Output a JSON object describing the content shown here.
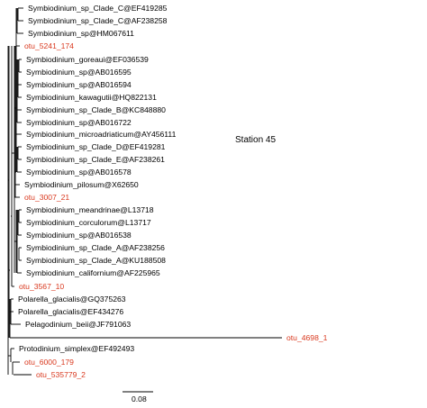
{
  "figure": {
    "annotation": "Station 45",
    "scale_bar_label": "0.08"
  },
  "colors": {
    "reference": "#000000",
    "otu": "#d9381e",
    "branch": "#000000"
  },
  "leaves": [
    {
      "label": "Symbiodinium_sp_Clade_C@EF419285",
      "kind": "reference"
    },
    {
      "label": "Symbiodinium_sp_Clade_C@AF238258",
      "kind": "reference"
    },
    {
      "label": "Symbiodinium_sp@HM067611",
      "kind": "reference"
    },
    {
      "label": "otu_5241_174",
      "kind": "otu"
    },
    {
      "label": "Symbiodinium_goreaui@EF036539",
      "kind": "reference"
    },
    {
      "label": "Symbiodinium_sp@AB016595",
      "kind": "reference"
    },
    {
      "label": "Symbiodinium_sp@AB016594",
      "kind": "reference"
    },
    {
      "label": "Symbiodinium_kawagutii@HQ822131",
      "kind": "reference"
    },
    {
      "label": "Symbiodinium_sp_Clade_B@KC848880",
      "kind": "reference"
    },
    {
      "label": "Symbiodinium_sp@AB016722",
      "kind": "reference"
    },
    {
      "label": "Symbiodinium_microadriaticum@AY456111",
      "kind": "reference"
    },
    {
      "label": "Symbiodinium_sp_Clade_D@EF419281",
      "kind": "reference"
    },
    {
      "label": "Symbiodinium_sp_Clade_E@AF238261",
      "kind": "reference"
    },
    {
      "label": "Symbiodinium_sp@AB016578",
      "kind": "reference"
    },
    {
      "label": "Symbiodinium_pilosum@X62650",
      "kind": "reference"
    },
    {
      "label": "otu_3007_21",
      "kind": "otu"
    },
    {
      "label": "Symbiodinium_meandrinae@L13718",
      "kind": "reference"
    },
    {
      "label": "Symbiodinium_corculorum@L13717",
      "kind": "reference"
    },
    {
      "label": "Symbiodinium_sp@AB016538",
      "kind": "reference"
    },
    {
      "label": "Symbiodinium_sp_Clade_A@AF238256",
      "kind": "reference"
    },
    {
      "label": "Symbiodinium_sp_Clade_A@KU188508",
      "kind": "reference"
    },
    {
      "label": "Symbiodinium_californium@AF225965",
      "kind": "reference"
    },
    {
      "label": "otu_3567_10",
      "kind": "otu"
    },
    {
      "label": "Polarella_glacialis@GQ375263",
      "kind": "reference"
    },
    {
      "label": "Polarella_glacialis@EF434276",
      "kind": "reference"
    },
    {
      "label": "Pelagodinium_beii@JF791063",
      "kind": "reference"
    },
    {
      "label": "otu_4698_1",
      "kind": "otu"
    },
    {
      "label": "Protodinium_simplex@EF492493",
      "kind": "reference"
    },
    {
      "label": "otu_6000_179",
      "kind": "otu"
    },
    {
      "label": "otu_535779_2",
      "kind": "otu"
    }
  ]
}
